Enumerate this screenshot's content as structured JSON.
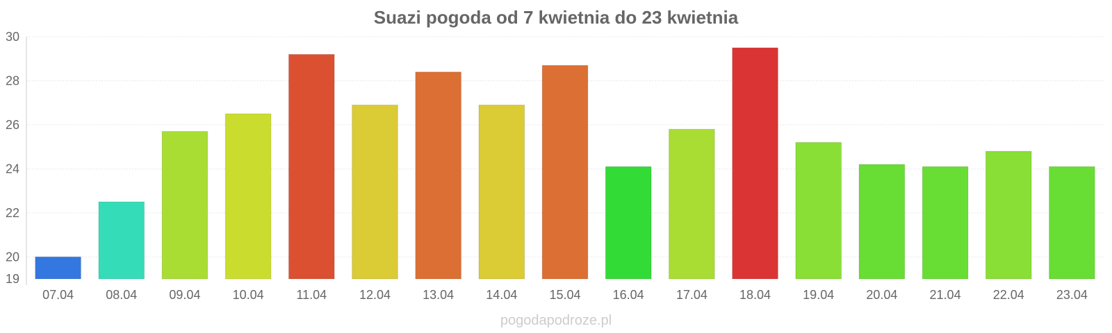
{
  "chart_data": {
    "type": "bar",
    "title": "Suazi pogoda od 7 kwietnia do 23 kwietnia",
    "xlabel": "",
    "ylabel": "",
    "ylim": [
      19,
      30
    ],
    "y_ticks": [
      19,
      20,
      22,
      24,
      26,
      28,
      30
    ],
    "grid": true,
    "categories": [
      "07.04",
      "08.04",
      "09.04",
      "10.04",
      "11.04",
      "12.04",
      "13.04",
      "14.04",
      "15.04",
      "16.04",
      "17.04",
      "18.04",
      "19.04",
      "20.04",
      "21.04",
      "22.04",
      "23.04"
    ],
    "values": [
      20.0,
      22.5,
      25.7,
      26.5,
      29.2,
      26.9,
      28.4,
      26.9,
      28.7,
      24.1,
      25.8,
      29.5,
      25.2,
      24.2,
      24.1,
      24.8,
      24.1
    ],
    "colors": [
      "#3477e0",
      "#35dcb8",
      "#a9dd33",
      "#cadd2f",
      "#dc5032",
      "#dbcb34",
      "#dc6f33",
      "#dbcb34",
      "#dc6f33",
      "#33db37",
      "#a9dd33",
      "#db3434",
      "#89df35",
      "#68dd33",
      "#68dd33",
      "#89df35",
      "#68dd33"
    ]
  },
  "watermark": "pogodapodroze.pl"
}
